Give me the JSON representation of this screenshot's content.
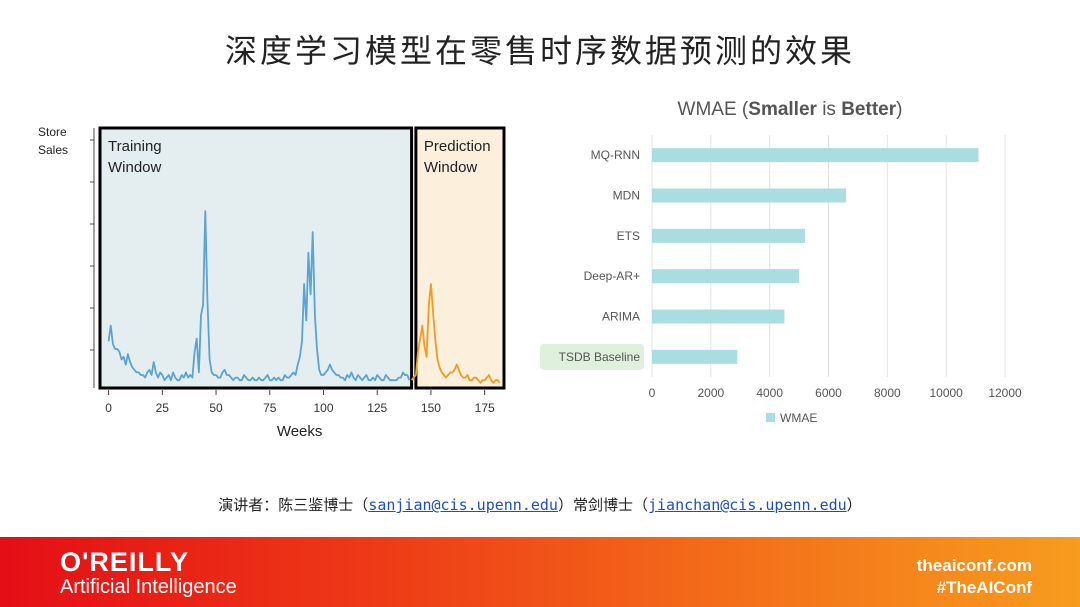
{
  "title": "深度学习模型在零售时序数据预测的效果",
  "credit": {
    "prefix": "演讲者：陈三鉴博士（",
    "email1": "sanjian@cis.upenn.edu",
    "middle": "）常剑博士（",
    "email2": "jianchan@cis.upenn.edu",
    "suffix": "）"
  },
  "footer": {
    "brand": "O'REILLY",
    "sub": "Artificial Intelligence",
    "site": "theaiconf.com",
    "hashtag": "#TheAIConf"
  },
  "colors": {
    "training_bg": "#e4eef1",
    "prediction_bg": "#fcf0dd",
    "training_line": "#5aa3d2",
    "prediction_line": "#f39a1f",
    "bar": "#a9dde0",
    "highlight": "#dff1dc"
  },
  "chart_data": [
    {
      "type": "line",
      "ylabel": "Store Sales",
      "xlabel": "Weeks",
      "xlim": [
        -4,
        184
      ],
      "ylim": [
        0,
        100
      ],
      "xticks": [
        0,
        25,
        50,
        75,
        100,
        125,
        150,
        175
      ],
      "windows": [
        {
          "name": "Training Window",
          "range": [
            -4,
            141
          ]
        },
        {
          "name": "Prediction Window",
          "range": [
            143,
            184
          ]
        }
      ],
      "series": [
        {
          "name": "Training",
          "x": [
            0,
            1,
            2,
            3,
            4,
            5,
            6,
            7,
            8,
            9,
            10,
            11,
            12,
            13,
            14,
            15,
            16,
            17,
            18,
            19,
            20,
            21,
            22,
            23,
            24,
            25,
            26,
            27,
            28,
            29,
            30,
            31,
            32,
            33,
            34,
            35,
            36,
            37,
            38,
            39,
            40,
            41,
            42,
            43,
            44,
            45,
            46,
            47,
            48,
            49,
            50,
            51,
            52,
            53,
            54,
            55,
            56,
            57,
            58,
            59,
            60,
            61,
            62,
            63,
            64,
            65,
            66,
            67,
            68,
            69,
            70,
            71,
            72,
            73,
            74,
            75,
            76,
            77,
            78,
            79,
            80,
            81,
            82,
            83,
            84,
            85,
            86,
            87,
            88,
            89,
            90,
            91,
            92,
            93,
            94,
            95,
            96,
            97,
            98,
            99,
            100,
            101,
            102,
            103,
            104,
            105,
            106,
            107,
            108,
            109,
            110,
            111,
            112,
            113,
            114,
            115,
            116,
            117,
            118,
            119,
            120,
            121,
            122,
            123,
            124,
            125,
            126,
            127,
            128,
            129,
            130,
            131,
            132,
            133,
            134,
            135,
            136,
            137,
            138,
            139,
            140
          ],
          "values": [
            18,
            24,
            17,
            15,
            15,
            14,
            11,
            12,
            9,
            13,
            10,
            8,
            7,
            6,
            6,
            5,
            5,
            4,
            6,
            7,
            5,
            10,
            6,
            4,
            6,
            5,
            3,
            4,
            5,
            3,
            6,
            4,
            3,
            3,
            5,
            4,
            6,
            4,
            5,
            4,
            14,
            19,
            6,
            28,
            32,
            68,
            34,
            11,
            6,
            5,
            5,
            4,
            4,
            6,
            7,
            5,
            5,
            4,
            3,
            4,
            4,
            3,
            3,
            5,
            4,
            3,
            3,
            4,
            3,
            3,
            4,
            3,
            3,
            4,
            5,
            3,
            3,
            4,
            3,
            4,
            3,
            3,
            5,
            4,
            4,
            5,
            6,
            5,
            9,
            12,
            18,
            40,
            26,
            52,
            36,
            60,
            28,
            15,
            7,
            5,
            5,
            6,
            7,
            9,
            7,
            6,
            5,
            5,
            4,
            4,
            3,
            5,
            4,
            6,
            4,
            3,
            5,
            4,
            3,
            4,
            5,
            3,
            3,
            4,
            3,
            5,
            4,
            3,
            3,
            5,
            4,
            3,
            3,
            3,
            3,
            4,
            4,
            6,
            5,
            5,
            3
          ]
        },
        {
          "name": "Prediction",
          "x": [
            141,
            142,
            143,
            144,
            145,
            146,
            147,
            148,
            149,
            150,
            151,
            152,
            153,
            154,
            155,
            156,
            157,
            158,
            159,
            160,
            161,
            162,
            163,
            164,
            165,
            166,
            167,
            168,
            169,
            170,
            171,
            172,
            173,
            174,
            175,
            176,
            177,
            178,
            179,
            180,
            181,
            182
          ],
          "values": [
            3,
            4,
            5,
            14,
            19,
            24,
            16,
            12,
            32,
            40,
            29,
            19,
            11,
            8,
            6,
            5,
            4,
            5,
            6,
            6,
            7,
            9,
            7,
            5,
            4,
            4,
            5,
            3,
            3,
            4,
            4,
            3,
            2,
            3,
            3,
            4,
            5,
            3,
            2,
            3,
            3,
            2
          ]
        }
      ]
    },
    {
      "type": "bar",
      "orientation": "horizontal",
      "title_parts": [
        "WMAE (",
        "Smaller",
        " is ",
        "Better",
        ")"
      ],
      "categories": [
        "MQ-RNN",
        "MDN",
        "ETS",
        "Deep-AR+",
        "ARIMA",
        "TSDB Baseline"
      ],
      "values": [
        11100,
        6600,
        5200,
        5000,
        4500,
        2900
      ],
      "highlight": "TSDB Baseline",
      "xlim": [
        0,
        12000
      ],
      "xticks": [
        0,
        2000,
        4000,
        6000,
        8000,
        10000,
        12000
      ],
      "legend": "WMAE",
      "legend_position": "bottom",
      "grid": true
    }
  ]
}
